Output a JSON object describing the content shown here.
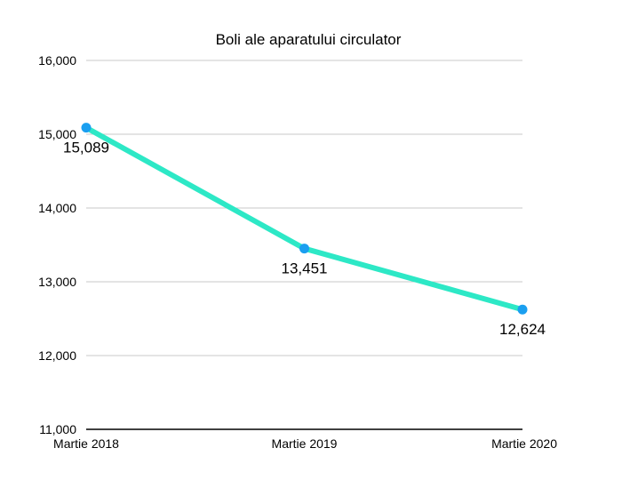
{
  "chart_data": {
    "type": "line",
    "title": "Boli ale aparatului circulator",
    "xlabel": "",
    "ylabel": "",
    "categories": [
      "Martie 2018",
      "Martie 2019",
      "Martie 2020"
    ],
    "series": [
      {
        "values": [
          15089,
          13451,
          12624
        ],
        "data_labels": [
          "15,089",
          "13,451",
          "12,624"
        ]
      }
    ],
    "ylim": [
      11000,
      16000
    ],
    "yticks": [
      11000,
      12000,
      13000,
      14000,
      15000,
      16000
    ],
    "ytick_labels": [
      "11,000",
      "12,000",
      "13,000",
      "14,000",
      "15,000",
      "16,000"
    ],
    "grid": true,
    "legend": "none",
    "colors": {
      "line": "#2de8c6",
      "marker": "#1a9ff0",
      "grid": "#c8c8c8",
      "baseline": "#000000"
    }
  }
}
